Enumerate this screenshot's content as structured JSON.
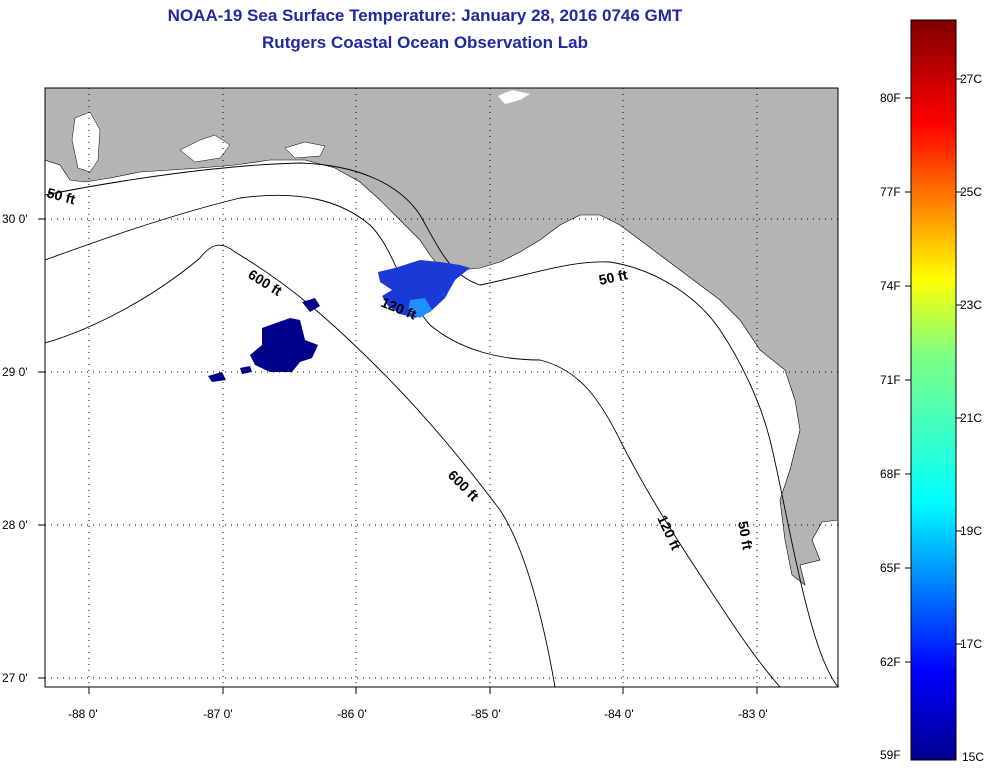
{
  "header": {
    "title": "NOAA-19 Sea Surface Temperature:  January 28, 2016 0746 GMT",
    "subtitle": "Rutgers Coastal Ocean Observation Lab"
  },
  "map": {
    "lon_ticks": [
      "-88 0'",
      "-87 0'",
      "-86 0'",
      "-85 0'",
      "-84 0'",
      "-83 0'"
    ],
    "lat_ticks": [
      "30 0'",
      "29 0'",
      "28 0'",
      "27 0'"
    ],
    "contour_labels": [
      "50 ft",
      "600 ft",
      "120 ft",
      "50 ft",
      "600 ft",
      "120 ft",
      "50 ft"
    ]
  },
  "colorbar": {
    "f_labels": [
      "80F",
      "77F",
      "74F",
      "71F",
      "68F",
      "65F",
      "62F",
      "59F"
    ],
    "c_labels": [
      "27C",
      "25C",
      "23C",
      "21C",
      "19C",
      "17C",
      "15C"
    ]
  },
  "colors": {
    "title": "#1f2a9e",
    "land": "#b4b4b4",
    "water": "#ffffff",
    "sst_cold": "#00008b",
    "sst_mid": "#1a3ad8",
    "sst_warm": "#1e90ff"
  }
}
